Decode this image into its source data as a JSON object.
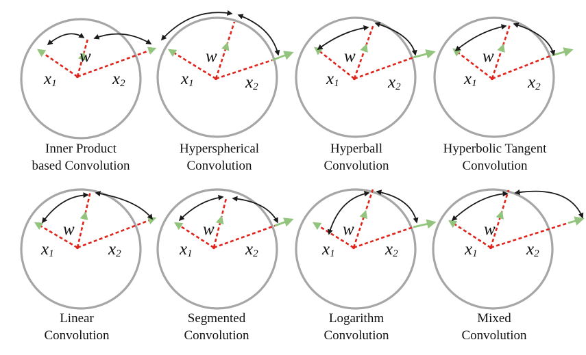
{
  "colors": {
    "circle": "#a6a6a6",
    "dashed_vector": "#e0241b",
    "arrow_head": "#93c47d",
    "arc": "#1a1a1a",
    "text": "#111111"
  },
  "symbols": {
    "w": "w",
    "x1": "x",
    "x1_sub": "1",
    "x2": "x",
    "x2_sub": "2"
  },
  "panels": [
    {
      "caption_line1": "Inner Product",
      "caption_line2": "based Convolution"
    },
    {
      "caption_line1": "Hyperspherical",
      "caption_line2": "Convolution"
    },
    {
      "caption_line1": "Hyperball",
      "caption_line2": "Convolution"
    },
    {
      "caption_line1": "Hyperbolic Tangent",
      "caption_line2": "Convolution"
    },
    {
      "caption_line1": "Linear",
      "caption_line2": "Convolution"
    },
    {
      "caption_line1": "Segmented",
      "caption_line2": "Convolution"
    },
    {
      "caption_line1": "Logarithm",
      "caption_line2": "Convolution"
    },
    {
      "caption_line1": "Mixed",
      "caption_line2": "Convolution"
    }
  ]
}
